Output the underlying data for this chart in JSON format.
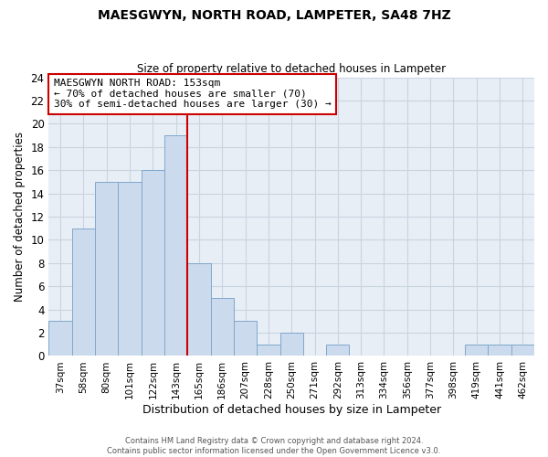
{
  "title": "MAESGWYN, NORTH ROAD, LAMPETER, SA48 7HZ",
  "subtitle": "Size of property relative to detached houses in Lampeter",
  "xlabel": "Distribution of detached houses by size in Lampeter",
  "ylabel": "Number of detached properties",
  "bar_color": "#ccdaed",
  "bar_edge_color": "#7fa8cc",
  "grid_color": "#c8d4e0",
  "background_color": "#e8eef6",
  "bin_labels": [
    "37sqm",
    "58sqm",
    "80sqm",
    "101sqm",
    "122sqm",
    "143sqm",
    "165sqm",
    "186sqm",
    "207sqm",
    "228sqm",
    "250sqm",
    "271sqm",
    "292sqm",
    "313sqm",
    "334sqm",
    "356sqm",
    "377sqm",
    "398sqm",
    "419sqm",
    "441sqm",
    "462sqm"
  ],
  "counts": [
    3,
    11,
    15,
    15,
    16,
    19,
    8,
    5,
    3,
    1,
    2,
    0,
    1,
    0,
    0,
    0,
    0,
    0,
    1,
    1,
    1
  ],
  "ylim": [
    0,
    24
  ],
  "yticks": [
    0,
    2,
    4,
    6,
    8,
    10,
    12,
    14,
    16,
    18,
    20,
    22,
    24
  ],
  "property_line_x": 5.5,
  "property_line_color": "#cc0000",
  "annotation_title": "MAESGWYN NORTH ROAD: 153sqm",
  "annotation_line1": "← 70% of detached houses are smaller (70)",
  "annotation_line2": "30% of semi-detached houses are larger (30) →",
  "annotation_box_color": "#ffffff",
  "annotation_box_edge": "#cc0000",
  "footer1": "Contains HM Land Registry data © Crown copyright and database right 2024.",
  "footer2": "Contains public sector information licensed under the Open Government Licence v3.0."
}
